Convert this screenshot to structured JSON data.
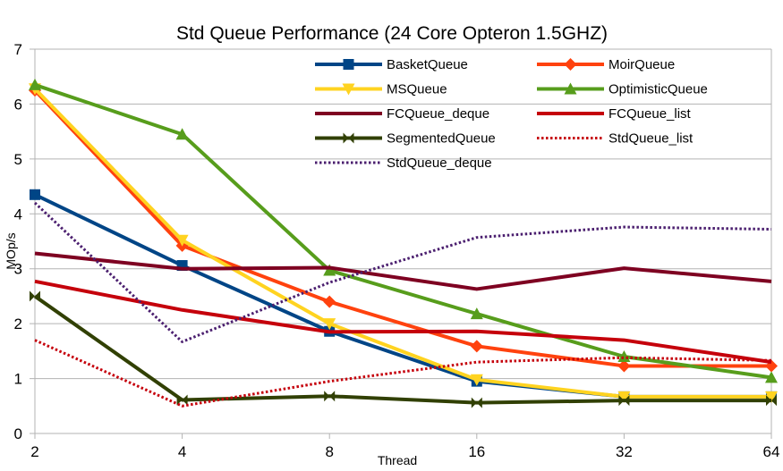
{
  "chart_data": {
    "type": "line",
    "title": "Std Queue Performance (24 Core Opteron 1.5GHZ)",
    "xlabel": "Thread",
    "ylabel": "MOp/s",
    "categories": [
      "2",
      "4",
      "8",
      "16",
      "32",
      "64"
    ],
    "ylim": [
      0,
      7
    ],
    "yticks": [
      "0",
      "1",
      "2",
      "3",
      "4",
      "5",
      "6",
      "7"
    ],
    "grid": true,
    "legend_position": "top-right",
    "series": [
      {
        "name": "BasketQueue",
        "color": "#004586",
        "marker": "square",
        "dash": "solid",
        "values": [
          4.35,
          3.06,
          1.86,
          0.95,
          0.67,
          0.67
        ]
      },
      {
        "name": "MoirQueue",
        "color": "#ff420e",
        "marker": "diamond",
        "dash": "solid",
        "values": [
          6.25,
          3.42,
          2.4,
          1.59,
          1.23,
          1.23
        ]
      },
      {
        "name": "MSQueue",
        "color": "#ffd320",
        "marker": "triangle-down",
        "dash": "solid",
        "values": [
          6.28,
          3.52,
          2.0,
          0.98,
          0.67,
          0.67
        ]
      },
      {
        "name": "OptimisticQueue",
        "color": "#579d1c",
        "marker": "triangle-up",
        "dash": "solid",
        "values": [
          6.35,
          5.45,
          2.97,
          2.18,
          1.4,
          1.02
        ]
      },
      {
        "name": "FCQueue_deque",
        "color": "#7e0021",
        "marker": "none",
        "dash": "solid",
        "values": [
          3.28,
          3.0,
          3.02,
          2.63,
          3.01,
          2.77
        ]
      },
      {
        "name": "FCQueue_list",
        "color": "#c5000b",
        "marker": "none",
        "dash": "solid",
        "values": [
          2.77,
          2.25,
          1.85,
          1.86,
          1.7,
          1.3
        ]
      },
      {
        "name": "SegmentedQueue",
        "color": "#314004",
        "marker": "bowtie",
        "dash": "solid",
        "values": [
          2.5,
          0.61,
          0.68,
          0.56,
          0.6,
          0.6
        ]
      },
      {
        "name": "StdQueue_list",
        "color": "#c5000b",
        "marker": "none",
        "dash": "dotted",
        "values": [
          1.7,
          0.5,
          0.95,
          1.3,
          1.38,
          1.33
        ]
      },
      {
        "name": "StdQueue_deque",
        "color": "#4b1f6f",
        "marker": "none",
        "dash": "dotted",
        "values": [
          4.2,
          1.67,
          2.75,
          3.57,
          3.76,
          3.72
        ]
      }
    ]
  }
}
